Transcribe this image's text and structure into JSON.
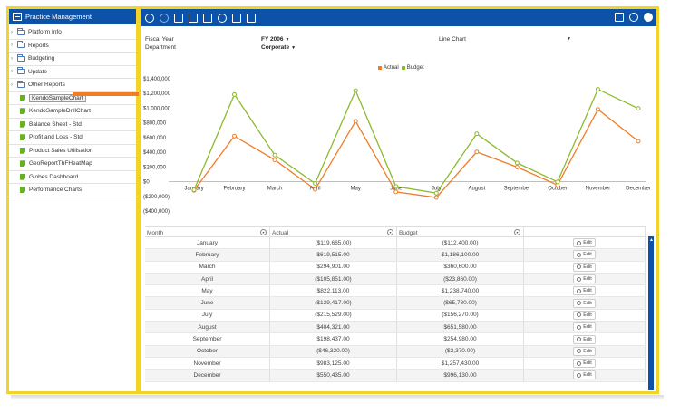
{
  "sidebar": {
    "title": "Practice Management",
    "items": [
      {
        "label": "Platform Info",
        "type": "folder",
        "icon": "folder-icon"
      },
      {
        "label": "Reports",
        "type": "folder",
        "icon": "folder-icon"
      },
      {
        "label": "Budgeting",
        "type": "folder",
        "icon": "folder-icon"
      },
      {
        "label": "Update",
        "type": "folder",
        "icon": "folder-icon"
      },
      {
        "label": "Other Reports",
        "type": "folder",
        "icon": "folder-icon"
      },
      {
        "label": "KendoSampleChart",
        "type": "report",
        "icon": "report-icon",
        "selected": true
      },
      {
        "label": "KendoSampleDrillChart",
        "type": "report",
        "icon": "report-icon"
      },
      {
        "label": "Balance Sheet - Std",
        "type": "report",
        "icon": "report-icon"
      },
      {
        "label": "Profit and Loss - Std",
        "type": "report",
        "icon": "report-icon"
      },
      {
        "label": "Product Sales Utilisation",
        "type": "report",
        "icon": "report-icon"
      },
      {
        "label": "GeoReportThFHeatMap",
        "type": "report",
        "icon": "report-icon"
      },
      {
        "label": "Globes Dashboard",
        "type": "report",
        "icon": "report-icon"
      },
      {
        "label": "Performance Charts",
        "type": "report",
        "icon": "report-icon"
      }
    ]
  },
  "toolbar": {
    "left_icons": [
      "refresh-icon",
      "undo-icon",
      "document-icon",
      "copy-icon",
      "save-icon",
      "export-icon",
      "chart-icon",
      "edit-document-icon"
    ],
    "right_icons": [
      "download-icon",
      "history-icon",
      "settings-icon"
    ]
  },
  "filters": {
    "fiscal_year_label": "Fiscal Year",
    "fiscal_year_value": "FY 2006",
    "department_label": "Department",
    "department_value": "Corporate",
    "chart_type_value": "Line Chart"
  },
  "colors": {
    "actual": "#f07c27",
    "budget": "#8cba2d",
    "brand": "#0b52a8",
    "highlight": "#f2d32a"
  },
  "chart_data": {
    "type": "line",
    "categories": [
      "January",
      "February",
      "March",
      "April",
      "May",
      "June",
      "July",
      "August",
      "September",
      "October",
      "November",
      "December"
    ],
    "series": [
      {
        "name": "Actual",
        "values": [
          -119665,
          619515,
          294901,
          -105851,
          822113,
          -139417,
          -215529,
          404321,
          198437,
          -46320,
          983125,
          550435
        ]
      },
      {
        "name": "Budget",
        "values": [
          -112400,
          1186100,
          360600,
          -23860,
          1238740,
          -65780,
          -156270,
          651580,
          254980,
          -3370,
          1257430,
          996130
        ]
      }
    ],
    "y_ticks": [
      "$1,400,000",
      "$1,200,000",
      "$1,000,000",
      "$800,000",
      "$600,000",
      "$400,000",
      "$200,000",
      "$0",
      "($200,000)",
      "($400,000)"
    ],
    "ylim": [
      -400000,
      1400000
    ],
    "legend": "top-center",
    "grid": false
  },
  "table": {
    "headers": [
      "Month",
      "Actual",
      "Budget"
    ],
    "edit_label": "Edit",
    "rows": [
      [
        "January",
        "($119,665.00)",
        "($112,400.00)"
      ],
      [
        "February",
        "$619,515.00",
        "$1,186,100.00"
      ],
      [
        "March",
        "$294,901.00",
        "$360,600.00"
      ],
      [
        "April",
        "($105,851.00)",
        "($23,860.00)"
      ],
      [
        "May",
        "$822,113.00",
        "$1,238,740.00"
      ],
      [
        "June",
        "($139,417.00)",
        "($65,780.00)"
      ],
      [
        "July",
        "($215,529.00)",
        "($156,270.00)"
      ],
      [
        "August",
        "$404,321.00",
        "$651,580.00"
      ],
      [
        "September",
        "$198,437.00",
        "$254,980.00"
      ],
      [
        "October",
        "($46,320.00)",
        "($3,370.00)"
      ],
      [
        "November",
        "$983,125.00",
        "$1,257,430.00"
      ],
      [
        "December",
        "$550,435.00",
        "$996,130.00"
      ]
    ]
  }
}
